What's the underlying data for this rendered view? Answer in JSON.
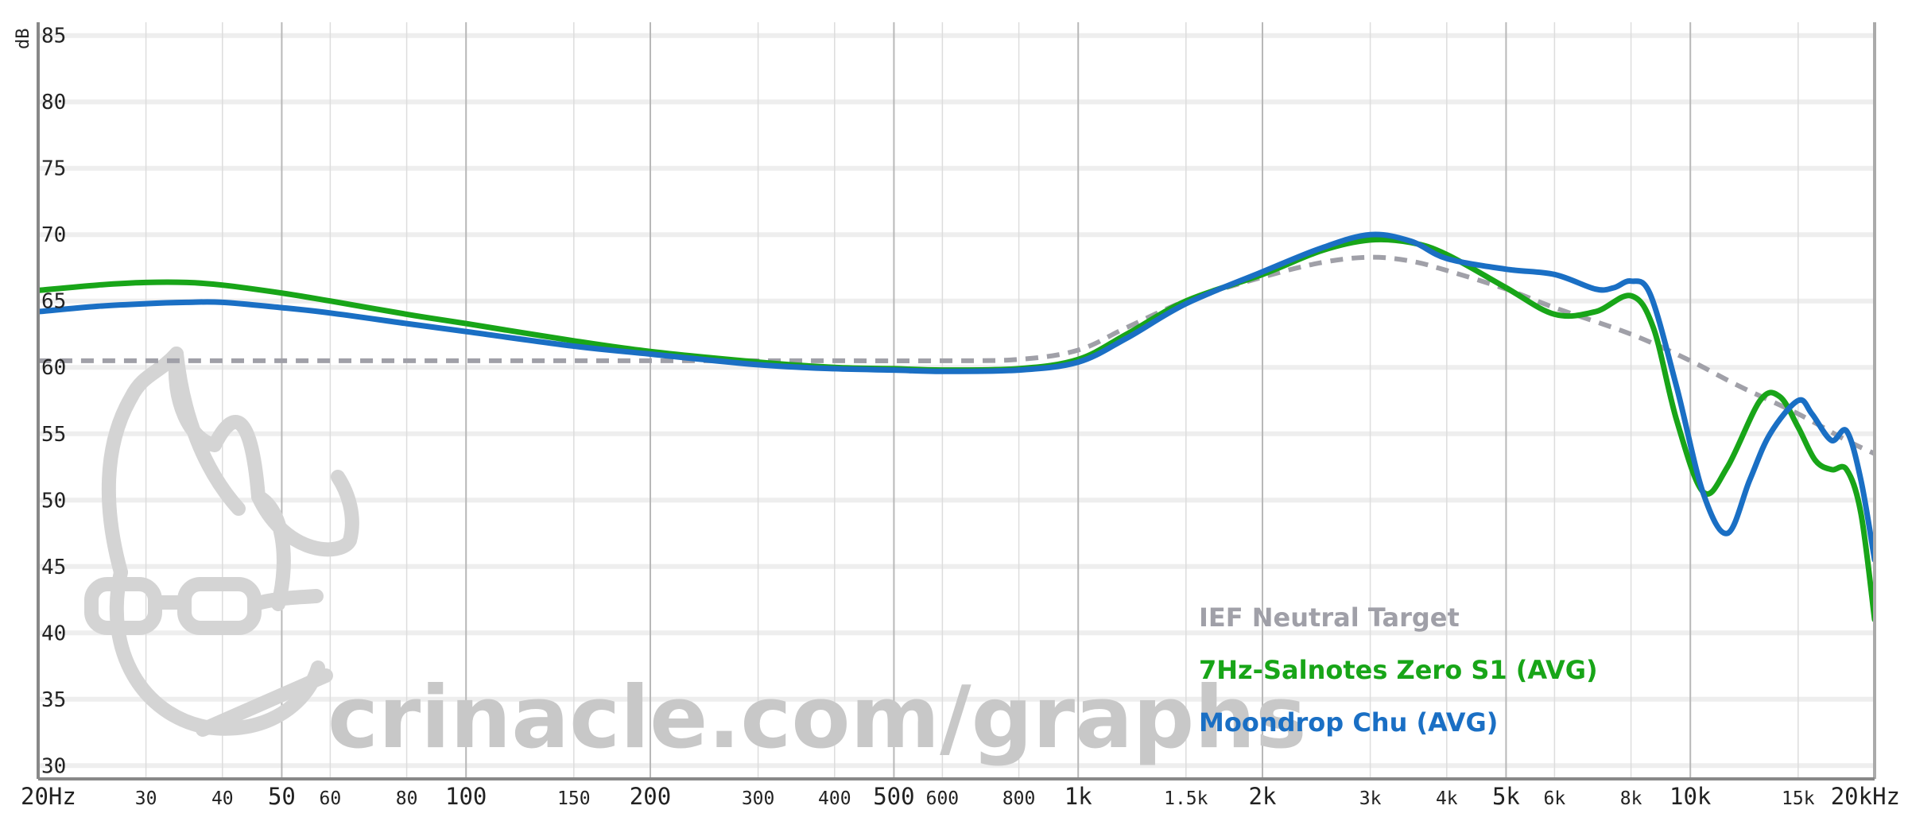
{
  "chart_data": {
    "type": "line",
    "x_scale": "log",
    "y_unit": "dB",
    "xlim": [
      20,
      20000
    ],
    "ylim": [
      29,
      86
    ],
    "grid": true,
    "legend_position": "bottom-right",
    "yticks": [
      {
        "value": 85,
        "label": "85"
      },
      {
        "value": 80,
        "label": "80"
      },
      {
        "value": 75,
        "label": "75"
      },
      {
        "value": 70,
        "label": "70"
      },
      {
        "value": 65,
        "label": "65"
      },
      {
        "value": 60,
        "label": "60"
      },
      {
        "value": 55,
        "label": "55"
      },
      {
        "value": 50,
        "label": "50"
      },
      {
        "value": 45,
        "label": "45"
      },
      {
        "value": 40,
        "label": "40"
      },
      {
        "value": 35,
        "label": "35"
      },
      {
        "value": 30,
        "label": "30"
      }
    ],
    "xticks": [
      {
        "value": 20,
        "label": "20Hz",
        "major": true
      },
      {
        "value": 30,
        "label": "30",
        "major": false
      },
      {
        "value": 40,
        "label": "40",
        "major": false
      },
      {
        "value": 50,
        "label": "50",
        "major": true
      },
      {
        "value": 60,
        "label": "60",
        "major": false
      },
      {
        "value": 80,
        "label": "80",
        "major": false
      },
      {
        "value": 100,
        "label": "100",
        "major": true
      },
      {
        "value": 150,
        "label": "150",
        "major": false
      },
      {
        "value": 200,
        "label": "200",
        "major": true
      },
      {
        "value": 300,
        "label": "300",
        "major": false
      },
      {
        "value": 400,
        "label": "400",
        "major": false
      },
      {
        "value": 500,
        "label": "500",
        "major": true
      },
      {
        "value": 600,
        "label": "600",
        "major": false
      },
      {
        "value": 800,
        "label": "800",
        "major": false
      },
      {
        "value": 1000,
        "label": "1k",
        "major": true
      },
      {
        "value": 1500,
        "label": "1.5k",
        "major": false
      },
      {
        "value": 2000,
        "label": "2k",
        "major": true
      },
      {
        "value": 3000,
        "label": "3k",
        "major": false
      },
      {
        "value": 4000,
        "label": "4k",
        "major": false
      },
      {
        "value": 5000,
        "label": "5k",
        "major": true
      },
      {
        "value": 6000,
        "label": "6k",
        "major": false
      },
      {
        "value": 8000,
        "label": "8k",
        "major": false
      },
      {
        "value": 10000,
        "label": "10k",
        "major": true
      },
      {
        "value": 15000,
        "label": "15k",
        "major": false
      },
      {
        "value": 20000,
        "label": "20kHz",
        "major": true
      }
    ],
    "series": [
      {
        "name": "IEF Neutral Target",
        "color": "#a0a0a8",
        "dashed": true,
        "points": [
          [
            20,
            60.5
          ],
          [
            100,
            60.5
          ],
          [
            200,
            60.5
          ],
          [
            400,
            60.5
          ],
          [
            600,
            60.5
          ],
          [
            800,
            60.6
          ],
          [
            1000,
            61.3
          ],
          [
            1200,
            63.0
          ],
          [
            1500,
            65.0
          ],
          [
            2000,
            66.8
          ],
          [
            2500,
            67.9
          ],
          [
            3000,
            68.3
          ],
          [
            3500,
            68.0
          ],
          [
            4000,
            67.3
          ],
          [
            5000,
            65.9
          ],
          [
            6000,
            64.5
          ],
          [
            8000,
            62.5
          ],
          [
            10000,
            60.5
          ],
          [
            12000,
            58.6
          ],
          [
            15000,
            56.5
          ],
          [
            18000,
            54.5
          ],
          [
            20000,
            53.5
          ]
        ]
      },
      {
        "name": "7Hz-Salnotes Zero S1 (AVG)",
        "color": "#18a518",
        "dashed": false,
        "points": [
          [
            20,
            65.8
          ],
          [
            25,
            66.2
          ],
          [
            30,
            66.4
          ],
          [
            35,
            66.4
          ],
          [
            40,
            66.2
          ],
          [
            50,
            65.6
          ],
          [
            60,
            65.0
          ],
          [
            80,
            64.0
          ],
          [
            100,
            63.3
          ],
          [
            150,
            62.0
          ],
          [
            200,
            61.2
          ],
          [
            300,
            60.4
          ],
          [
            400,
            60.0
          ],
          [
            500,
            59.9
          ],
          [
            600,
            59.8
          ],
          [
            800,
            59.9
          ],
          [
            1000,
            60.6
          ],
          [
            1200,
            62.5
          ],
          [
            1500,
            65.0
          ],
          [
            2000,
            67.0
          ],
          [
            2500,
            68.8
          ],
          [
            3000,
            69.6
          ],
          [
            3500,
            69.4
          ],
          [
            4000,
            68.5
          ],
          [
            5000,
            66.0
          ],
          [
            6000,
            64.0
          ],
          [
            7000,
            64.2
          ],
          [
            8000,
            65.4
          ],
          [
            8700,
            63.0
          ],
          [
            9500,
            56.0
          ],
          [
            10500,
            50.6
          ],
          [
            11500,
            52.5
          ],
          [
            13000,
            57.5
          ],
          [
            14000,
            57.8
          ],
          [
            15000,
            55.5
          ],
          [
            16000,
            53.0
          ],
          [
            17000,
            52.3
          ],
          [
            18000,
            52.3
          ],
          [
            19000,
            49.0
          ],
          [
            20000,
            41.0
          ]
        ]
      },
      {
        "name": "Moondrop Chu (AVG)",
        "color": "#1a6fc4",
        "dashed": false,
        "points": [
          [
            20,
            64.2
          ],
          [
            25,
            64.6
          ],
          [
            30,
            64.8
          ],
          [
            35,
            64.9
          ],
          [
            40,
            64.9
          ],
          [
            50,
            64.5
          ],
          [
            60,
            64.1
          ],
          [
            80,
            63.3
          ],
          [
            100,
            62.7
          ],
          [
            150,
            61.6
          ],
          [
            200,
            61.0
          ],
          [
            300,
            60.2
          ],
          [
            400,
            59.9
          ],
          [
            500,
            59.8
          ],
          [
            600,
            59.7
          ],
          [
            800,
            59.8
          ],
          [
            1000,
            60.4
          ],
          [
            1200,
            62.2
          ],
          [
            1500,
            64.8
          ],
          [
            2000,
            67.2
          ],
          [
            2500,
            69.0
          ],
          [
            3000,
            70.0
          ],
          [
            3500,
            69.5
          ],
          [
            4000,
            68.2
          ],
          [
            5000,
            67.4
          ],
          [
            6000,
            67.0
          ],
          [
            7000,
            65.9
          ],
          [
            7500,
            66.0
          ],
          [
            8000,
            66.5
          ],
          [
            8600,
            65.5
          ],
          [
            9500,
            58.5
          ],
          [
            10500,
            50.5
          ],
          [
            11500,
            47.5
          ],
          [
            12500,
            51.5
          ],
          [
            13500,
            55.0
          ],
          [
            15000,
            57.5
          ],
          [
            15800,
            56.5
          ],
          [
            17000,
            54.5
          ],
          [
            18000,
            55.2
          ],
          [
            19000,
            51.5
          ],
          [
            20000,
            45.5
          ]
        ]
      }
    ]
  },
  "watermark": {
    "text": "crinacle.com/graphs"
  }
}
